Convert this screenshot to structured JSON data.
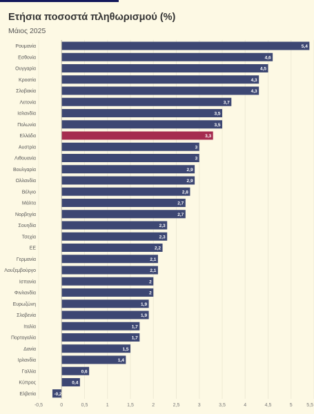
{
  "title": "Ετήσια ποσοστά πληθωρισμού (%)",
  "subtitle": "Μάιος 2025",
  "colors": {
    "bar": "#3d4773",
    "highlight": "#a52c4f",
    "background": "#fdf9e4",
    "grid": "#eeead5",
    "label": "#555555",
    "value_text": "#ffffff"
  },
  "chart_data": {
    "type": "bar",
    "orientation": "horizontal",
    "title": "Ετήσια ποσοστά πληθωρισμού (%)",
    "subtitle": "Μάιος 2025",
    "categories": [
      "Ρουμανία",
      "Εσθονία",
      "Ουγγαρία",
      "Κροατία",
      "Σλοβακία",
      "Λετονία",
      "Ισλανδία",
      "Πολωνία",
      "Ελλάδα",
      "Αυστρία",
      "Λιθουανία",
      "Βουλγαρία",
      "Ολλανδία",
      "Βέλγιο",
      "Μάλτα",
      "Νορβηγία",
      "Σουηδία",
      "Τσεχία",
      "ΕΕ",
      "Γερμανία",
      "Λουξεμβούργο",
      "Ισπανία",
      "Φινλανδία",
      "Ευρωζώνη",
      "Σλοβενία",
      "Ιταλία",
      "Πορτογαλία",
      "Δανία",
      "Ιρλανδία",
      "Γαλλία",
      "Κύπρος",
      "Ελβετία"
    ],
    "values": [
      5.4,
      4.6,
      4.5,
      4.3,
      4.3,
      3.7,
      3.5,
      3.5,
      3.3,
      3,
      3,
      2.9,
      2.9,
      2.8,
      2.7,
      2.7,
      2.3,
      2.3,
      2.2,
      2.1,
      2.1,
      2,
      2,
      1.9,
      1.9,
      1.7,
      1.7,
      1.5,
      1.4,
      0.6,
      0.4,
      -0.2
    ],
    "value_labels": [
      "5,4",
      "4,6",
      "4,5",
      "4,3",
      "4,3",
      "3,7",
      "3,5",
      "3,5",
      "3,3",
      "3",
      "3",
      "2,9",
      "2,9",
      "2,8",
      "2,7",
      "2,7",
      "2,3",
      "2,3",
      "2,2",
      "2,1",
      "2,1",
      "2",
      "2",
      "1,9",
      "1,9",
      "1,7",
      "1,7",
      "1,5",
      "1,4",
      "0,6",
      "0,4",
      "-0,2"
    ],
    "highlight": "Ελλάδα",
    "xlim": [
      -0.5,
      5.5
    ],
    "xticks": [
      -0.5,
      0,
      0.5,
      1,
      1.5,
      2,
      2.5,
      3,
      3.5,
      4,
      4.5,
      5,
      5.5
    ],
    "xtick_labels": [
      "-0,5",
      "0",
      "0,5",
      "1",
      "1,5",
      "2",
      "2,5",
      "3",
      "3,5",
      "4",
      "4,5",
      "5",
      "5,5"
    ],
    "grid": true,
    "legend": "none",
    "xlabel": "",
    "ylabel": ""
  }
}
